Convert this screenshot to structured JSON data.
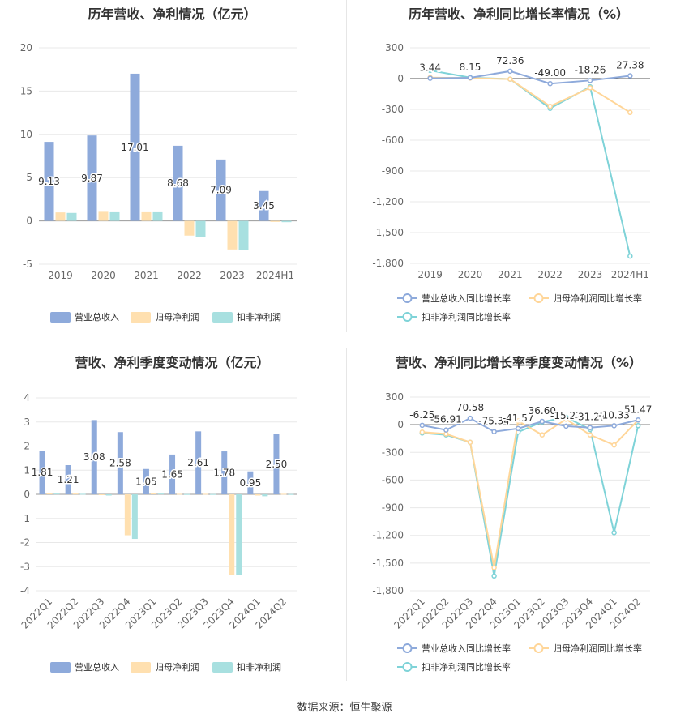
{
  "source": "数据来源：恒生聚源",
  "chart_data": [
    {
      "type": "bar",
      "title": "历年营收、净利情况（亿元）",
      "categories": [
        "2019",
        "2020",
        "2021",
        "2022",
        "2023",
        "2024H1"
      ],
      "ylim": [
        -5,
        20
      ],
      "yticks": [
        -5,
        0,
        5,
        10,
        15,
        20
      ],
      "series": [
        {
          "name": "营业总收入",
          "color": "#8eaadb",
          "values": [
            9.13,
            9.87,
            17.01,
            8.68,
            7.09,
            3.45
          ],
          "labels": [
            "9.13",
            "9.87",
            "17.01",
            "8.68",
            "7.09",
            "3.45"
          ]
        },
        {
          "name": "归母净利润",
          "color": "#ffe0b0",
          "values": [
            0.98,
            1.05,
            1.0,
            -1.7,
            -3.3,
            -0.12
          ]
        },
        {
          "name": "扣非净利润",
          "color": "#a8e0e0",
          "values": [
            0.92,
            1.0,
            1.0,
            -1.9,
            -3.4,
            -0.15
          ]
        }
      ]
    },
    {
      "type": "line",
      "title": "历年营收、净利同比增长率情况（%）",
      "categories": [
        "2019",
        "2020",
        "2021",
        "2022",
        "2023",
        "2024H1"
      ],
      "ylim": [
        -1800,
        300
      ],
      "yticks": [
        300,
        0,
        -300,
        -600,
        -900,
        -1200,
        -1500,
        -1800
      ],
      "ytick_labels": [
        "300",
        "0",
        "-300",
        "-600",
        "-900",
        "-1,200",
        "-1,500",
        "-1,800"
      ],
      "series": [
        {
          "name": "营业总收入同比增长率",
          "color": "#8eaadb",
          "values": [
            3.44,
            8.15,
            72.36,
            -49.0,
            -18.26,
            27.38
          ],
          "labels": [
            "3.44",
            "8.15",
            "72.36",
            "-49.00",
            "-18.26",
            "27.38"
          ]
        },
        {
          "name": "归母净利润同比增长率",
          "color": "#ffd699",
          "values": [
            10,
            5,
            -5,
            -270,
            -90,
            -330
          ]
        },
        {
          "name": "扣非净利润同比增长率",
          "color": "#7fd3d8",
          "values": [
            80,
            10,
            -5,
            -290,
            -80,
            -1730
          ]
        }
      ]
    },
    {
      "type": "bar",
      "title": "营收、净利季度变动情况（亿元）",
      "categories": [
        "2022Q1",
        "2022Q2",
        "2022Q3",
        "2022Q4",
        "2023Q1",
        "2023Q2",
        "2023Q3",
        "2023Q4",
        "2024Q1",
        "2024Q2"
      ],
      "ylim": [
        -4,
        4
      ],
      "yticks": [
        -4,
        -3,
        -2,
        -1,
        0,
        1,
        2,
        3,
        4
      ],
      "series": [
        {
          "name": "营业总收入",
          "color": "#8eaadb",
          "values": [
            1.81,
            1.21,
            3.08,
            2.58,
            1.05,
            1.65,
            2.61,
            1.78,
            0.95,
            2.5
          ],
          "labels": [
            "1.81",
            "1.21",
            "3.08",
            "2.58",
            "1.05",
            "1.65",
            "2.61",
            "1.78",
            "0.95",
            "2.50"
          ]
        },
        {
          "name": "归母净利润",
          "color": "#ffe0b0",
          "values": [
            0.05,
            0.03,
            0.0,
            -1.7,
            0.06,
            0.02,
            0.02,
            -3.35,
            -0.05,
            0.02
          ]
        },
        {
          "name": "扣非净利润",
          "color": "#a8e0e0",
          "values": [
            0.03,
            0.02,
            -0.05,
            -1.85,
            0.03,
            0.01,
            0.01,
            -3.35,
            -0.08,
            0.01
          ]
        }
      ]
    },
    {
      "type": "line",
      "title": "营收、净利同比增长率季度变动情况（%）",
      "categories": [
        "2022Q1",
        "2022Q2",
        "2022Q3",
        "2022Q4",
        "2023Q1",
        "2023Q2",
        "2023Q3",
        "2023Q4",
        "2024Q1",
        "2024Q2"
      ],
      "ylim": [
        -1800,
        300
      ],
      "yticks": [
        300,
        0,
        -300,
        -600,
        -900,
        -1200,
        -1500,
        -1800
      ],
      "ytick_labels": [
        "300",
        "0",
        "-300",
        "-600",
        "-900",
        "-1,200",
        "-1,500",
        "-1,800"
      ],
      "series": [
        {
          "name": "营业总收入同比增长率",
          "color": "#8eaadb",
          "values": [
            -6.25,
            -56.91,
            70.58,
            -75.34,
            -41.57,
            36.6,
            -15.22,
            -31.27,
            -10.33,
            51.47
          ],
          "labels": [
            "-6.25",
            "-56.91",
            "70.58",
            "-75.34",
            "-41.57",
            "36.60",
            "-15.22",
            "-31.27",
            "-10.33",
            "51.47"
          ]
        },
        {
          "name": "归母净利润同比增长率",
          "color": "#ffd699",
          "values": [
            -80,
            -100,
            -190,
            -1550,
            40,
            -110,
            60,
            -110,
            -220,
            50
          ]
        },
        {
          "name": "扣非净利润同比增长率",
          "color": "#7fd3d8",
          "values": [
            -90,
            -110,
            -190,
            -1640,
            -80,
            30,
            80,
            -50,
            -1170,
            -10
          ]
        }
      ]
    }
  ]
}
